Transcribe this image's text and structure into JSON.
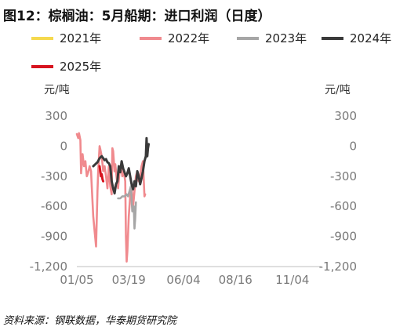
{
  "title": "图12：棕榈油：5月船期：进口利润（日度）",
  "source": "资料来源：钢联数据，华泰期货研究院",
  "chart_data": {
    "type": "line",
    "y_unit_left": "元/吨",
    "y_unit_right": "元/吨",
    "xlabel": "",
    "ylabel": "",
    "ylim": [
      -1200,
      300
    ],
    "yticks": [
      300,
      0,
      -300,
      -600,
      -900,
      -1200
    ],
    "ytick_labels": [
      "300",
      "0",
      "-300",
      "-600",
      "-900",
      "-1,200"
    ],
    "xlim": [
      "01/05",
      "12/15"
    ],
    "xtick_labels": [
      "01/05",
      "03/19",
      "06/04",
      "08/16",
      "11/04"
    ],
    "xtick_dates": [
      "01/05",
      "03/19",
      "06/04",
      "08/16",
      "11/04"
    ],
    "grid": false,
    "legend_position": "top",
    "series": [
      {
        "name": "2021年",
        "color": "#F5D94E",
        "points": []
      },
      {
        "name": "2022年",
        "color": "#F08A8E",
        "points": [
          [
            "01/05",
            120
          ],
          [
            "01/07",
            80
          ],
          [
            "01/08",
            130
          ],
          [
            "01/10",
            60
          ],
          [
            "01/11",
            -270
          ],
          [
            "01/13",
            -80
          ],
          [
            "01/15",
            -200
          ],
          [
            "01/17",
            -150
          ],
          [
            "01/19",
            -300
          ],
          [
            "01/21",
            -260
          ],
          [
            "01/23",
            -200
          ],
          [
            "01/25",
            -250
          ],
          [
            "01/26",
            -400
          ],
          [
            "01/28",
            -700
          ],
          [
            "01/30",
            -850
          ],
          [
            "02/01",
            -1000
          ],
          [
            "02/03",
            -450
          ],
          [
            "02/04",
            -250
          ],
          [
            "02/06",
            0
          ],
          [
            "02/07",
            -30
          ],
          [
            "02/09",
            -100
          ],
          [
            "02/11",
            -250
          ],
          [
            "02/13",
            -200
          ],
          [
            "02/15",
            -300
          ],
          [
            "02/17",
            -420
          ],
          [
            "02/19",
            -200
          ],
          [
            "02/21",
            -400
          ],
          [
            "02/23",
            -480
          ],
          [
            "02/24",
            -20
          ],
          [
            "02/25",
            -50
          ],
          [
            "02/27",
            -250
          ],
          [
            "02/28",
            -180
          ],
          [
            "03/02",
            -320
          ],
          [
            "03/04",
            -420
          ],
          [
            "03/06",
            -250
          ],
          [
            "03/08",
            -200
          ],
          [
            "03/10",
            -300
          ],
          [
            "03/12",
            -250
          ],
          [
            "03/14",
            -350
          ],
          [
            "03/15",
            -900
          ],
          [
            "03/16",
            -1150
          ],
          [
            "03/17",
            -1050
          ],
          [
            "03/19",
            -700
          ],
          [
            "03/21",
            -500
          ],
          [
            "03/23",
            -400
          ],
          [
            "03/25",
            -600
          ],
          [
            "03/27",
            -450
          ],
          [
            "03/29",
            -300
          ],
          [
            "03/31",
            -250
          ],
          [
            "04/02",
            -350
          ],
          [
            "04/04",
            -300
          ],
          [
            "04/06",
            -200
          ],
          [
            "04/08",
            -150
          ],
          [
            "04/10",
            -500
          ],
          [
            "04/11",
            -480
          ]
        ]
      },
      {
        "name": "2023年",
        "color": "#A6A6A6",
        "points": [
          [
            "03/04",
            -520
          ],
          [
            "03/07",
            -520
          ],
          [
            "03/10",
            -500
          ],
          [
            "03/13",
            -500
          ],
          [
            "03/16",
            -480
          ],
          [
            "03/18",
            -500
          ],
          [
            "03/20",
            -450
          ],
          [
            "03/22",
            -400
          ],
          [
            "03/24",
            -650
          ],
          [
            "03/26",
            -600
          ],
          [
            "03/27",
            -820
          ],
          [
            "03/28",
            -720
          ],
          [
            "03/29",
            -560
          ]
        ]
      },
      {
        "name": "2024年",
        "color": "#3A3A3A",
        "points": [
          [
            "01/28",
            -200
          ],
          [
            "01/31",
            -180
          ],
          [
            "02/03",
            -160
          ],
          [
            "02/06",
            -120
          ],
          [
            "02/09",
            -100
          ],
          [
            "02/11",
            -120
          ],
          [
            "02/13",
            -140
          ],
          [
            "02/15",
            -130
          ],
          [
            "02/17",
            -160
          ],
          [
            "02/19",
            -170
          ],
          [
            "02/21",
            -200
          ],
          [
            "02/23",
            -350
          ],
          [
            "02/25",
            -420
          ],
          [
            "02/27",
            -470
          ],
          [
            "03/01",
            -380
          ],
          [
            "03/03",
            -350
          ],
          [
            "03/05",
            -200
          ],
          [
            "03/07",
            -260
          ],
          [
            "03/09",
            -150
          ],
          [
            "03/11",
            -220
          ],
          [
            "03/13",
            -260
          ],
          [
            "03/15",
            -300
          ],
          [
            "03/17",
            -270
          ],
          [
            "03/19",
            -220
          ],
          [
            "03/21",
            -300
          ],
          [
            "03/23",
            -380
          ],
          [
            "03/25",
            -430
          ],
          [
            "03/27",
            -350
          ],
          [
            "03/29",
            -400
          ],
          [
            "03/31",
            -250
          ],
          [
            "04/02",
            -300
          ],
          [
            "04/04",
            -380
          ],
          [
            "04/06",
            -320
          ],
          [
            "04/08",
            -250
          ],
          [
            "04/10",
            -150
          ],
          [
            "04/12",
            -100
          ],
          [
            "04/13",
            80
          ],
          [
            "04/14",
            -100
          ],
          [
            "04/15",
            -20
          ],
          [
            "04/16",
            20
          ]
        ]
      },
      {
        "name": "2025年",
        "color": "#D7141F",
        "points": [
          [
            "02/06",
            -200
          ],
          [
            "02/07",
            -250
          ],
          [
            "02/08",
            -300
          ],
          [
            "02/09",
            -280
          ],
          [
            "02/10",
            -330
          ],
          [
            "02/11",
            -350
          ]
        ]
      }
    ]
  }
}
